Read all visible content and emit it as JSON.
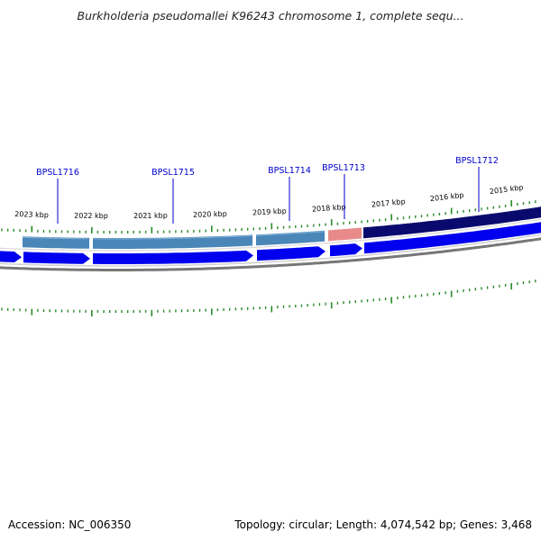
{
  "title": "Burkholderia pseudomallei K96243 chromosome 1, complete sequ...",
  "footer": {
    "accession": "Accession: NC_006350",
    "summary": "Topology: circular; Length: 4,074,542 bp; Genes: 3,468"
  },
  "colors": {
    "gene_label": "#0000cc",
    "gene_line": "#0000cc",
    "tick": "#2a8a2a",
    "feature_steelblue": "#4a86b8",
    "feature_pink": "#e88a8a",
    "feature_navy": "#0a0a6e",
    "feature_blue": "#0000ee",
    "backbone": "#777777"
  },
  "map": {
    "kbp_labels": [
      "2023 kbp",
      "2022 kbp",
      "2021 kbp",
      "2020 kbp",
      "2019 kbp",
      "2018 kbp",
      "2017 kbp",
      "2016 kbp",
      "2015 kbp"
    ],
    "gene_labels": [
      "BPSL1716",
      "BPSL1715",
      "BPSL1714",
      "BPSL1713",
      "BPSL1712"
    ],
    "upper_track": [
      {
        "name": "seg-1",
        "color": "steelblue"
      },
      {
        "name": "seg-2",
        "color": "steelblue"
      },
      {
        "name": "seg-3",
        "color": "steelblue"
      },
      {
        "name": "seg-4",
        "color": "pink"
      },
      {
        "name": "seg-5",
        "color": "navy"
      }
    ],
    "lower_track": [
      {
        "name": "arrow-1",
        "color": "blue"
      },
      {
        "name": "arrow-2",
        "color": "blue"
      },
      {
        "name": "arrow-3",
        "color": "blue"
      },
      {
        "name": "arrow-4",
        "color": "blue"
      },
      {
        "name": "arrow-5",
        "color": "blue"
      },
      {
        "name": "arrow-6",
        "color": "blue"
      }
    ]
  }
}
